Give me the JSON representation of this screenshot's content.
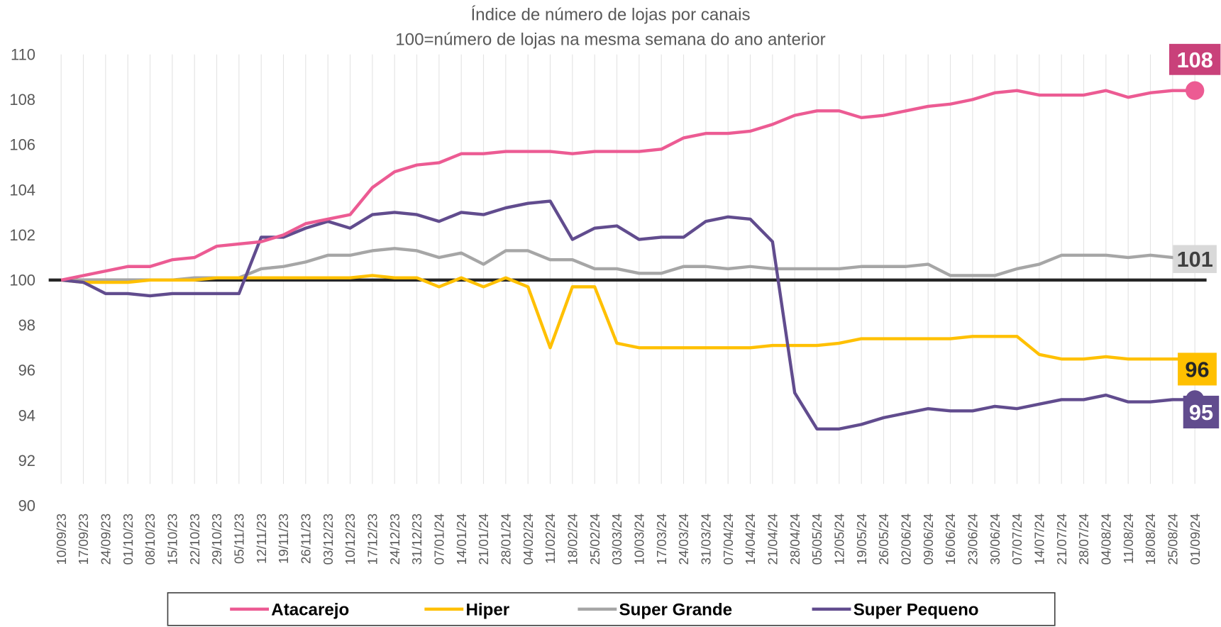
{
  "chart_data": {
    "type": "line",
    "title": "Índice de número de lojas por canais",
    "subtitle": "100=número de lojas na mesma semana do ano anterior",
    "categories": [
      "10/09/23",
      "17/09/23",
      "24/09/23",
      "01/10/23",
      "08/10/23",
      "15/10/23",
      "22/10/23",
      "29/10/23",
      "05/11/23",
      "12/11/23",
      "19/11/23",
      "26/11/23",
      "03/12/23",
      "10/12/23",
      "17/12/23",
      "24/12/23",
      "31/12/23",
      "07/01/24",
      "14/01/24",
      "21/01/24",
      "28/01/24",
      "04/02/24",
      "11/02/24",
      "18/02/24",
      "25/02/24",
      "03/03/24",
      "10/03/24",
      "17/03/24",
      "24/03/24",
      "31/03/24",
      "07/04/24",
      "14/04/24",
      "21/04/24",
      "28/04/24",
      "05/05/24",
      "12/05/24",
      "19/05/24",
      "26/05/24",
      "02/06/24",
      "09/06/24",
      "16/06/24",
      "23/06/24",
      "30/06/24",
      "07/07/24",
      "14/07/24",
      "21/07/24",
      "28/07/24",
      "04/08/24",
      "11/08/24",
      "18/08/24",
      "25/08/24",
      "01/09/24"
    ],
    "series": [
      {
        "name": "Atacarejo",
        "color": "#ec5b93",
        "label_color": "#c9417a",
        "label_text_color": "#ffffff",
        "end_label": "108",
        "values": [
          100,
          100.2,
          100.4,
          100.6,
          100.6,
          100.9,
          101.0,
          101.5,
          101.6,
          101.7,
          102.0,
          102.5,
          102.7,
          102.9,
          104.1,
          104.8,
          105.1,
          105.2,
          105.6,
          105.6,
          105.7,
          105.7,
          105.7,
          105.6,
          105.7,
          105.7,
          105.7,
          105.8,
          106.3,
          106.5,
          106.5,
          106.6,
          106.9,
          107.3,
          107.5,
          107.5,
          107.2,
          107.3,
          107.5,
          107.7,
          107.8,
          108.0,
          108.3,
          108.4,
          108.2,
          108.2,
          108.2,
          108.4,
          108.1,
          108.3,
          108.4,
          108.4
        ]
      },
      {
        "name": "Hiper",
        "color": "#ffc000",
        "label_color": "#ffc000",
        "label_text_color": "#262626",
        "end_label": "96",
        "values": [
          100,
          99.9,
          99.9,
          99.9,
          100.0,
          100.0,
          100.0,
          100.1,
          100.1,
          100.1,
          100.1,
          100.1,
          100.1,
          100.1,
          100.2,
          100.1,
          100.1,
          99.7,
          100.1,
          99.7,
          100.1,
          99.7,
          97.0,
          99.7,
          99.7,
          97.2,
          97.0,
          97.0,
          97.0,
          97.0,
          97.0,
          97.0,
          97.1,
          97.1,
          97.1,
          97.2,
          97.4,
          97.4,
          97.4,
          97.4,
          97.4,
          97.5,
          97.5,
          97.5,
          96.7,
          96.5,
          96.5,
          96.6,
          96.5,
          96.5,
          96.5,
          96.5
        ]
      },
      {
        "name": "Super Grande",
        "color": "#a6a6a6",
        "label_color": "#d9d9d9",
        "label_text_color": "#404040",
        "end_label": "101",
        "values": [
          100,
          100,
          100,
          100,
          100,
          100,
          100.1,
          100.1,
          100.1,
          100.5,
          100.6,
          100.8,
          101.1,
          101.1,
          101.3,
          101.4,
          101.3,
          101.0,
          101.2,
          100.7,
          101.3,
          101.3,
          100.9,
          100.9,
          100.5,
          100.5,
          100.3,
          100.3,
          100.6,
          100.6,
          100.5,
          100.6,
          100.5,
          100.5,
          100.5,
          100.5,
          100.6,
          100.6,
          100.6,
          100.7,
          100.2,
          100.2,
          100.2,
          100.5,
          100.7,
          101.1,
          101.1,
          101.1,
          101.0,
          101.1,
          101.0,
          101.0
        ]
      },
      {
        "name": "Super Pequeno",
        "color": "#614c8e",
        "label_color": "#614c8e",
        "label_text_color": "#ffffff",
        "end_label": "95",
        "values": [
          100,
          99.9,
          99.4,
          99.4,
          99.3,
          99.4,
          99.4,
          99.4,
          99.4,
          101.9,
          101.9,
          102.3,
          102.6,
          102.3,
          102.9,
          103.0,
          102.9,
          102.6,
          103.0,
          102.9,
          103.2,
          103.4,
          103.5,
          101.8,
          102.3,
          102.4,
          101.8,
          101.9,
          101.9,
          102.6,
          102.8,
          102.7,
          101.7,
          95.0,
          93.4,
          93.4,
          93.6,
          93.9,
          94.1,
          94.3,
          94.2,
          94.2,
          94.4,
          94.3,
          94.5,
          94.7,
          94.7,
          94.9,
          94.6,
          94.6,
          94.7,
          94.7
        ]
      }
    ],
    "ylim": [
      90,
      110
    ],
    "yticks": [
      90,
      92,
      94,
      96,
      98,
      100,
      102,
      104,
      106,
      108,
      110
    ],
    "reference_line": 100,
    "grid": true,
    "legend": "bottom"
  }
}
